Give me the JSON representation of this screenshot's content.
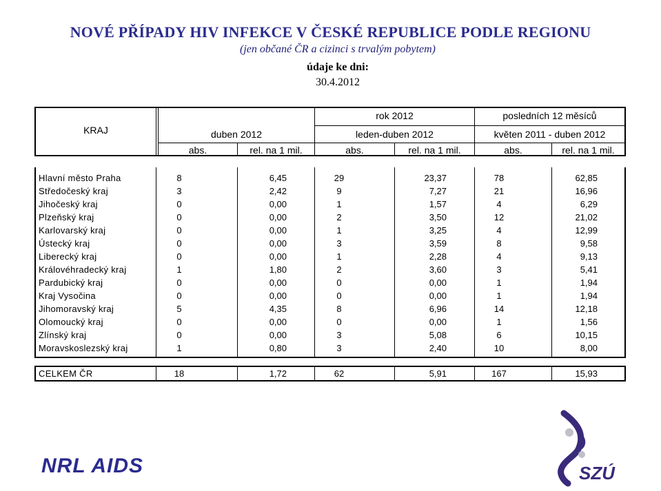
{
  "header": {
    "title": "NOVÉ PŘÍPADY HIV INFEKCE V ČESKÉ REPUBLICE PODLE REGIONU",
    "subtitle": "(jen občané ČR a cizinci s trvalým pobytem)",
    "asof_label": "údaje ke dni:",
    "asof_date": "30.4.2012"
  },
  "table": {
    "region_header": "KRAJ",
    "group_headers": [
      "rok 2012",
      "posledních 12 měsíců"
    ],
    "period_headers": [
      "duben 2012",
      "leden-duben 2012",
      "květen 2011 - duben 2012"
    ],
    "col_headers": [
      "abs.",
      "rel. na 1 mil.",
      "abs.",
      "rel. na 1 mil.",
      "abs.",
      "rel. na 1 mil."
    ],
    "rows": [
      {
        "name": "Hlavní město Praha",
        "v": [
          "8",
          "6,45",
          "29",
          "23,37",
          "78",
          "62,85"
        ]
      },
      {
        "name": "Středočeský kraj",
        "v": [
          "3",
          "2,42",
          "9",
          "7,27",
          "21",
          "16,96"
        ]
      },
      {
        "name": "Jihočeský kraj",
        "v": [
          "0",
          "0,00",
          "1",
          "1,57",
          "4",
          "6,29"
        ]
      },
      {
        "name": "Plzeňský kraj",
        "v": [
          "0",
          "0,00",
          "2",
          "3,50",
          "12",
          "21,02"
        ]
      },
      {
        "name": "Karlovarský kraj",
        "v": [
          "0",
          "0,00",
          "1",
          "3,25",
          "4",
          "12,99"
        ]
      },
      {
        "name": "Ústecký kraj",
        "v": [
          "0",
          "0,00",
          "3",
          "3,59",
          "8",
          "9,58"
        ]
      },
      {
        "name": "Liberecký kraj",
        "v": [
          "0",
          "0,00",
          "1",
          "2,28",
          "4",
          "9,13"
        ]
      },
      {
        "name": "Královéhradecký kraj",
        "v": [
          "1",
          "1,80",
          "2",
          "3,60",
          "3",
          "5,41"
        ]
      },
      {
        "name": "Pardubický kraj",
        "v": [
          "0",
          "0,00",
          "0",
          "0,00",
          "1",
          "1,94"
        ]
      },
      {
        "name": "Kraj Vysočina",
        "v": [
          "0",
          "0,00",
          "0",
          "0,00",
          "1",
          "1,94"
        ]
      },
      {
        "name": "Jihomoravský kraj",
        "v": [
          "5",
          "4,35",
          "8",
          "6,96",
          "14",
          "12,18"
        ]
      },
      {
        "name": "Olomoucký kraj",
        "v": [
          "0",
          "0,00",
          "0",
          "0,00",
          "1",
          "1,56"
        ]
      },
      {
        "name": "Zlínský kraj",
        "v": [
          "0",
          "0,00",
          "3",
          "5,08",
          "6",
          "10,15"
        ]
      },
      {
        "name": "Moravskoslezský kraj",
        "v": [
          "1",
          "0,80",
          "3",
          "2,40",
          "10",
          "8,00"
        ]
      }
    ],
    "total": {
      "name": "CELKEM ČR",
      "v": [
        "18",
        "1,72",
        "62",
        "5,91",
        "167",
        "15,93"
      ]
    }
  },
  "footer": {
    "logo_left": "NRL AIDS",
    "logo_right": "SZÚ"
  },
  "colors": {
    "title": "#2b2b8f",
    "logo": "#2b2b8f",
    "logo_accent": "#3a2a7a"
  }
}
